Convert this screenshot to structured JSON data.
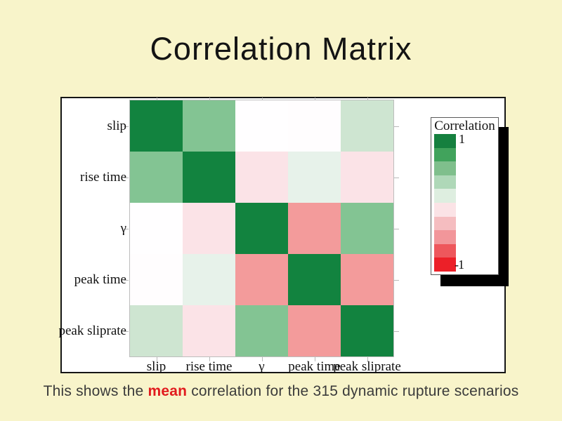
{
  "slide": {
    "title": "Correlation Matrix",
    "background_color": "#f8f4ca"
  },
  "caption": {
    "prefix": "This shows the ",
    "highlight": "mean",
    "suffix": " correlation for the 315 dynamic rupture scenarios",
    "highlight_color": "#e11b1e",
    "text_color": "#3b3b3b"
  },
  "legend": {
    "title": "Correlation",
    "max_label": "1",
    "min_label": "-1",
    "colors": [
      "#15803f",
      "#41a35c",
      "#7fbf8c",
      "#afd8b8",
      "#deeee0",
      "#fbe3e6",
      "#f5bdc0",
      "#f2969a",
      "#ee575c",
      "#ec2028"
    ]
  },
  "chart_data": {
    "type": "heatmap",
    "title": "Correlation Matrix",
    "variables": [
      "slip",
      "rise time",
      "γ",
      "peak time",
      "peak sliprate"
    ],
    "x_categories": [
      "slip",
      "rise time",
      "γ",
      "peak time",
      "peak sliprate"
    ],
    "y_categories": [
      "slip",
      "rise time",
      "γ",
      "peak time",
      "peak sliprate"
    ],
    "values": [
      [
        1.0,
        0.5,
        0.0,
        0.0,
        0.2
      ],
      [
        0.5,
        1.0,
        -0.1,
        0.1,
        -0.1
      ],
      [
        0.0,
        -0.1,
        1.0,
        -0.4,
        0.5
      ],
      [
        0.0,
        0.1,
        -0.4,
        1.0,
        -0.4
      ],
      [
        0.2,
        -0.1,
        0.5,
        -0.4,
        1.0
      ]
    ],
    "cell_colors": [
      [
        "#12833f",
        "#83c493",
        "#fffeff",
        "#fffdfe",
        "#cee5d1"
      ],
      [
        "#83c493",
        "#12833f",
        "#fbe3e7",
        "#e7f2ea",
        "#fbe3e7"
      ],
      [
        "#fffeff",
        "#fbe3e7",
        "#12833f",
        "#f39b9b",
        "#83c493"
      ],
      [
        "#fffdfe",
        "#e7f2ea",
        "#f39b9b",
        "#12833f",
        "#f39b9b"
      ],
      [
        "#cee5d1",
        "#fbe3e7",
        "#83c493",
        "#f39b9b",
        "#12833f"
      ]
    ],
    "colorbar": {
      "title": "Correlation",
      "min": -1,
      "max": 1,
      "colors_top_to_bottom": [
        "#15803f",
        "#41a35c",
        "#7fbf8c",
        "#afd8b8",
        "#deeee0",
        "#fbe3e6",
        "#f5bdc0",
        "#f2969a",
        "#ee575c",
        "#ec2028"
      ]
    },
    "legend_position": "right",
    "grid": false
  }
}
